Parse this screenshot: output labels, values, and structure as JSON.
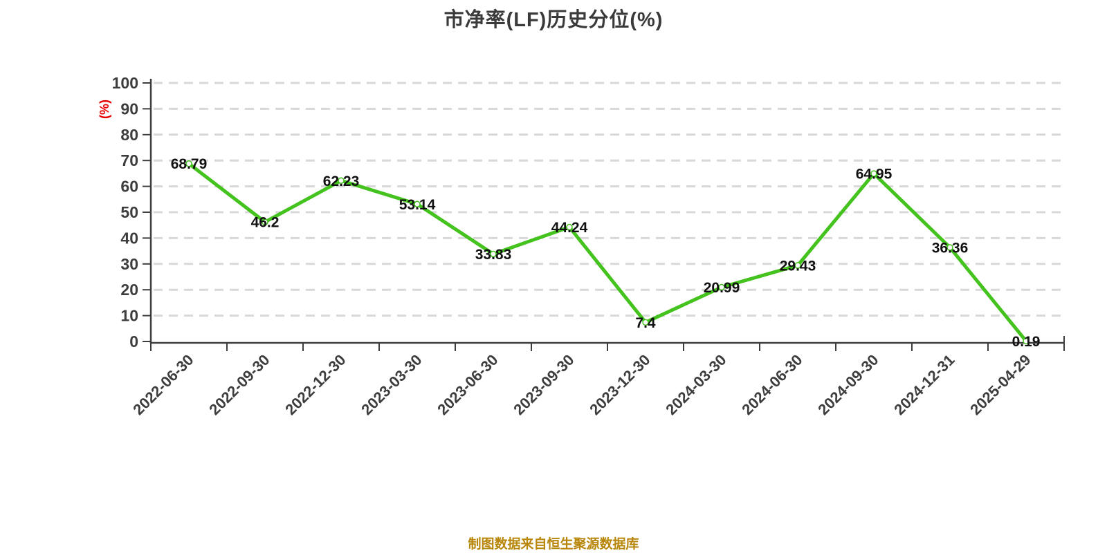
{
  "header": {
    "title": "市净率(LF)历史分位(%)"
  },
  "footer": {
    "source_note": "制图数据来自恒生聚源数据库"
  },
  "chart_data": {
    "type": "line",
    "title": "市净率(LF)历史分位(%)",
    "xlabel": "",
    "ylabel": "(%)",
    "categories": [
      "2022-06-30",
      "2022-09-30",
      "2022-12-30",
      "2023-03-30",
      "2023-06-30",
      "2023-09-30",
      "2023-12-30",
      "2024-03-30",
      "2024-06-30",
      "2024-09-30",
      "2024-12-31",
      "2025-04-29"
    ],
    "series": [
      {
        "name": "市净率(LF)历史分位(%)",
        "values": [
          68.79,
          46.2,
          62.23,
          53.14,
          33.83,
          44.24,
          7.4,
          20.99,
          29.43,
          64.95,
          36.36,
          0.19
        ]
      }
    ],
    "ylim": [
      0,
      100
    ],
    "yticks": [
      0,
      10,
      20,
      30,
      40,
      50,
      60,
      70,
      80,
      90,
      100
    ],
    "grid": "horizontal-dashed",
    "legend": "none",
    "x_label_rotation_deg": 45,
    "colors": {
      "line": "#44c21e",
      "marker_fill": "#ffffff",
      "marker_ring": "#44c21e",
      "grid": "#d8d8d8",
      "axis": "#3d3d3d",
      "tick_label": "#3d3d3d",
      "data_label": "#111111",
      "ylabel": "#e60000",
      "title": "#3a3a3a",
      "footer": "#b8860b"
    }
  }
}
